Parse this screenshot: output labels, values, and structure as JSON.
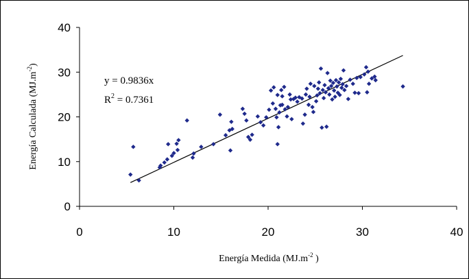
{
  "chart_data": {
    "type": "scatter",
    "xlabel_main": "Energía Medida (MJ.m",
    "xlabel_sup": "-2",
    "xlabel_tail": " )",
    "ylabel_main": "Energía Calculada (MJ.m",
    "ylabel_sup": "-2",
    "ylabel_tail": ")",
    "xlim": [
      0,
      40
    ],
    "ylim": [
      0,
      40
    ],
    "xticks": [
      "0",
      "10",
      "20",
      "30",
      "40"
    ],
    "yticks": [
      "0",
      "10",
      "20",
      "30",
      "40"
    ],
    "grid": false,
    "legend": "none",
    "marker_color": "#1f2a8c",
    "annotations": {
      "equation": "y = 0.9836x",
      "r2_prefix": "R",
      "r2_sup": "2",
      "r2_value": " = 0.7361"
    },
    "trendline": {
      "slope": 0.9836,
      "intercept": 0,
      "x_range": [
        5.4,
        34.3
      ]
    },
    "points": [
      [
        5.4,
        7.1
      ],
      [
        5.7,
        13.3
      ],
      [
        6.3,
        5.8
      ],
      [
        8.5,
        8.7
      ],
      [
        8.6,
        9.1
      ],
      [
        9.0,
        9.8
      ],
      [
        9.3,
        10.5
      ],
      [
        9.4,
        13.9
      ],
      [
        9.8,
        11.3
      ],
      [
        10.0,
        11.9
      ],
      [
        10.3,
        14.0
      ],
      [
        10.4,
        12.6
      ],
      [
        10.5,
        14.8
      ],
      [
        11.4,
        19.2
      ],
      [
        12.0,
        10.9
      ],
      [
        12.1,
        11.8
      ],
      [
        12.9,
        13.3
      ],
      [
        14.2,
        13.9
      ],
      [
        14.9,
        20.5
      ],
      [
        15.5,
        15.9
      ],
      [
        15.9,
        17.0
      ],
      [
        16.0,
        12.5
      ],
      [
        16.2,
        17.3
      ],
      [
        16.1,
        18.9
      ],
      [
        17.3,
        21.8
      ],
      [
        17.5,
        20.7
      ],
      [
        17.7,
        19.2
      ],
      [
        17.9,
        15.5
      ],
      [
        18.1,
        14.9
      ],
      [
        18.3,
        16.0
      ],
      [
        18.9,
        20.1
      ],
      [
        19.2,
        18.8
      ],
      [
        19.5,
        18.1
      ],
      [
        19.8,
        19.9
      ],
      [
        20.1,
        21.6
      ],
      [
        20.3,
        25.9
      ],
      [
        20.5,
        23.0
      ],
      [
        20.6,
        26.6
      ],
      [
        20.8,
        21.8
      ],
      [
        20.9,
        19.9
      ],
      [
        21.0,
        24.9
      ],
      [
        21.0,
        13.9
      ],
      [
        21.1,
        17.7
      ],
      [
        21.2,
        21.0
      ],
      [
        21.3,
        22.6
      ],
      [
        21.4,
        26.0
      ],
      [
        21.5,
        24.6
      ],
      [
        21.5,
        22.7
      ],
      [
        21.7,
        26.7
      ],
      [
        21.8,
        21.7
      ],
      [
        22.0,
        20.1
      ],
      [
        22.1,
        22.2
      ],
      [
        22.3,
        25.0
      ],
      [
        22.4,
        23.9
      ],
      [
        22.5,
        19.5
      ],
      [
        22.7,
        24.0
      ],
      [
        22.9,
        24.3
      ],
      [
        23.1,
        23.4
      ],
      [
        23.3,
        24.4
      ],
      [
        23.6,
        24.1
      ],
      [
        23.7,
        18.5
      ],
      [
        23.9,
        20.5
      ],
      [
        24.0,
        25.0
      ],
      [
        24.1,
        26.3
      ],
      [
        24.3,
        22.7
      ],
      [
        24.4,
        24.5
      ],
      [
        24.5,
        27.4
      ],
      [
        24.7,
        22.2
      ],
      [
        24.8,
        21.1
      ],
      [
        24.9,
        26.9
      ],
      [
        25.1,
        23.5
      ],
      [
        25.2,
        24.8
      ],
      [
        25.3,
        26.3
      ],
      [
        25.4,
        27.7
      ],
      [
        25.5,
        25.3
      ],
      [
        25.6,
        30.8
      ],
      [
        25.7,
        17.6
      ],
      [
        25.8,
        26.0
      ],
      [
        25.9,
        24.2
      ],
      [
        26.0,
        27.1
      ],
      [
        26.1,
        25.5
      ],
      [
        26.2,
        17.8
      ],
      [
        26.3,
        29.8
      ],
      [
        26.4,
        26.4
      ],
      [
        26.5,
        25.0
      ],
      [
        26.6,
        28.1
      ],
      [
        26.7,
        26.9
      ],
      [
        26.8,
        23.9
      ],
      [
        26.9,
        27.6
      ],
      [
        27.0,
        25.9
      ],
      [
        27.1,
        24.5
      ],
      [
        27.2,
        28.2
      ],
      [
        27.3,
        26.8
      ],
      [
        27.4,
        25.4
      ],
      [
        27.5,
        27.7
      ],
      [
        27.6,
        24.9
      ],
      [
        27.7,
        28.5
      ],
      [
        27.8,
        26.5
      ],
      [
        27.9,
        27.3
      ],
      [
        28.0,
        30.4
      ],
      [
        28.1,
        26.0
      ],
      [
        28.3,
        26.9
      ],
      [
        28.5,
        24.0
      ],
      [
        28.7,
        28.3
      ],
      [
        29.0,
        27.4
      ],
      [
        29.2,
        25.4
      ],
      [
        29.4,
        28.7
      ],
      [
        29.6,
        25.3
      ],
      [
        29.8,
        28.9
      ],
      [
        30.2,
        29.5
      ],
      [
        30.4,
        31.1
      ],
      [
        30.5,
        25.5
      ],
      [
        30.6,
        30.1
      ],
      [
        30.7,
        27.4
      ],
      [
        31.0,
        28.6
      ],
      [
        31.3,
        29.0
      ],
      [
        31.4,
        28.2
      ],
      [
        34.3,
        26.8
      ]
    ]
  }
}
